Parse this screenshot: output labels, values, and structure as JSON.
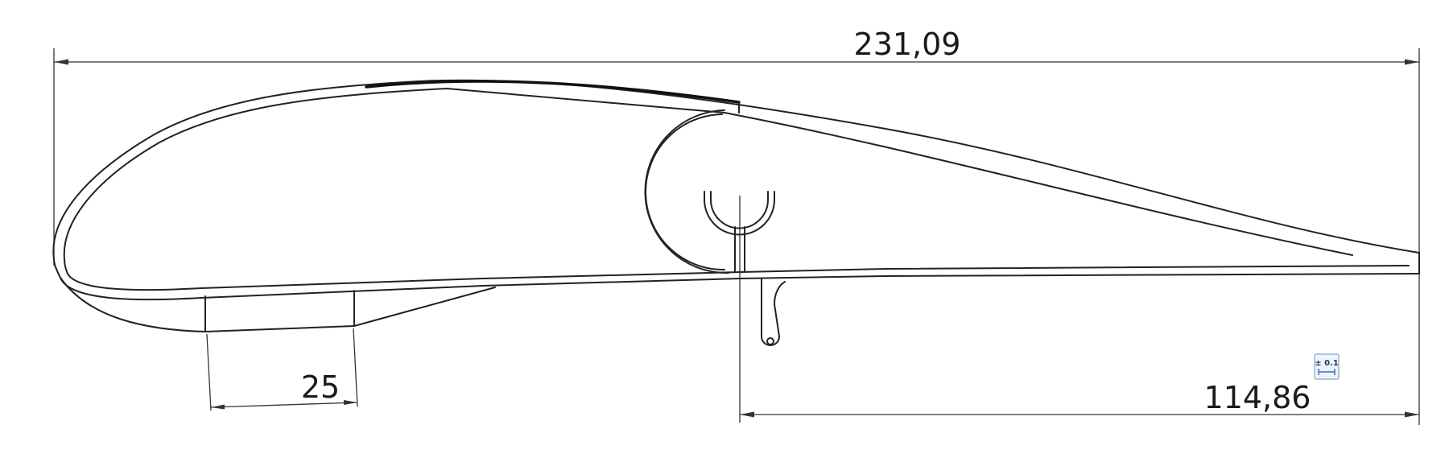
{
  "dimensions": {
    "overall_length": "231,09",
    "rear_length": "114,86",
    "strip_width": "25"
  },
  "tolerance_badge": {
    "label": "± 0.1",
    "icon": "tolerance-dimension-icon"
  }
}
